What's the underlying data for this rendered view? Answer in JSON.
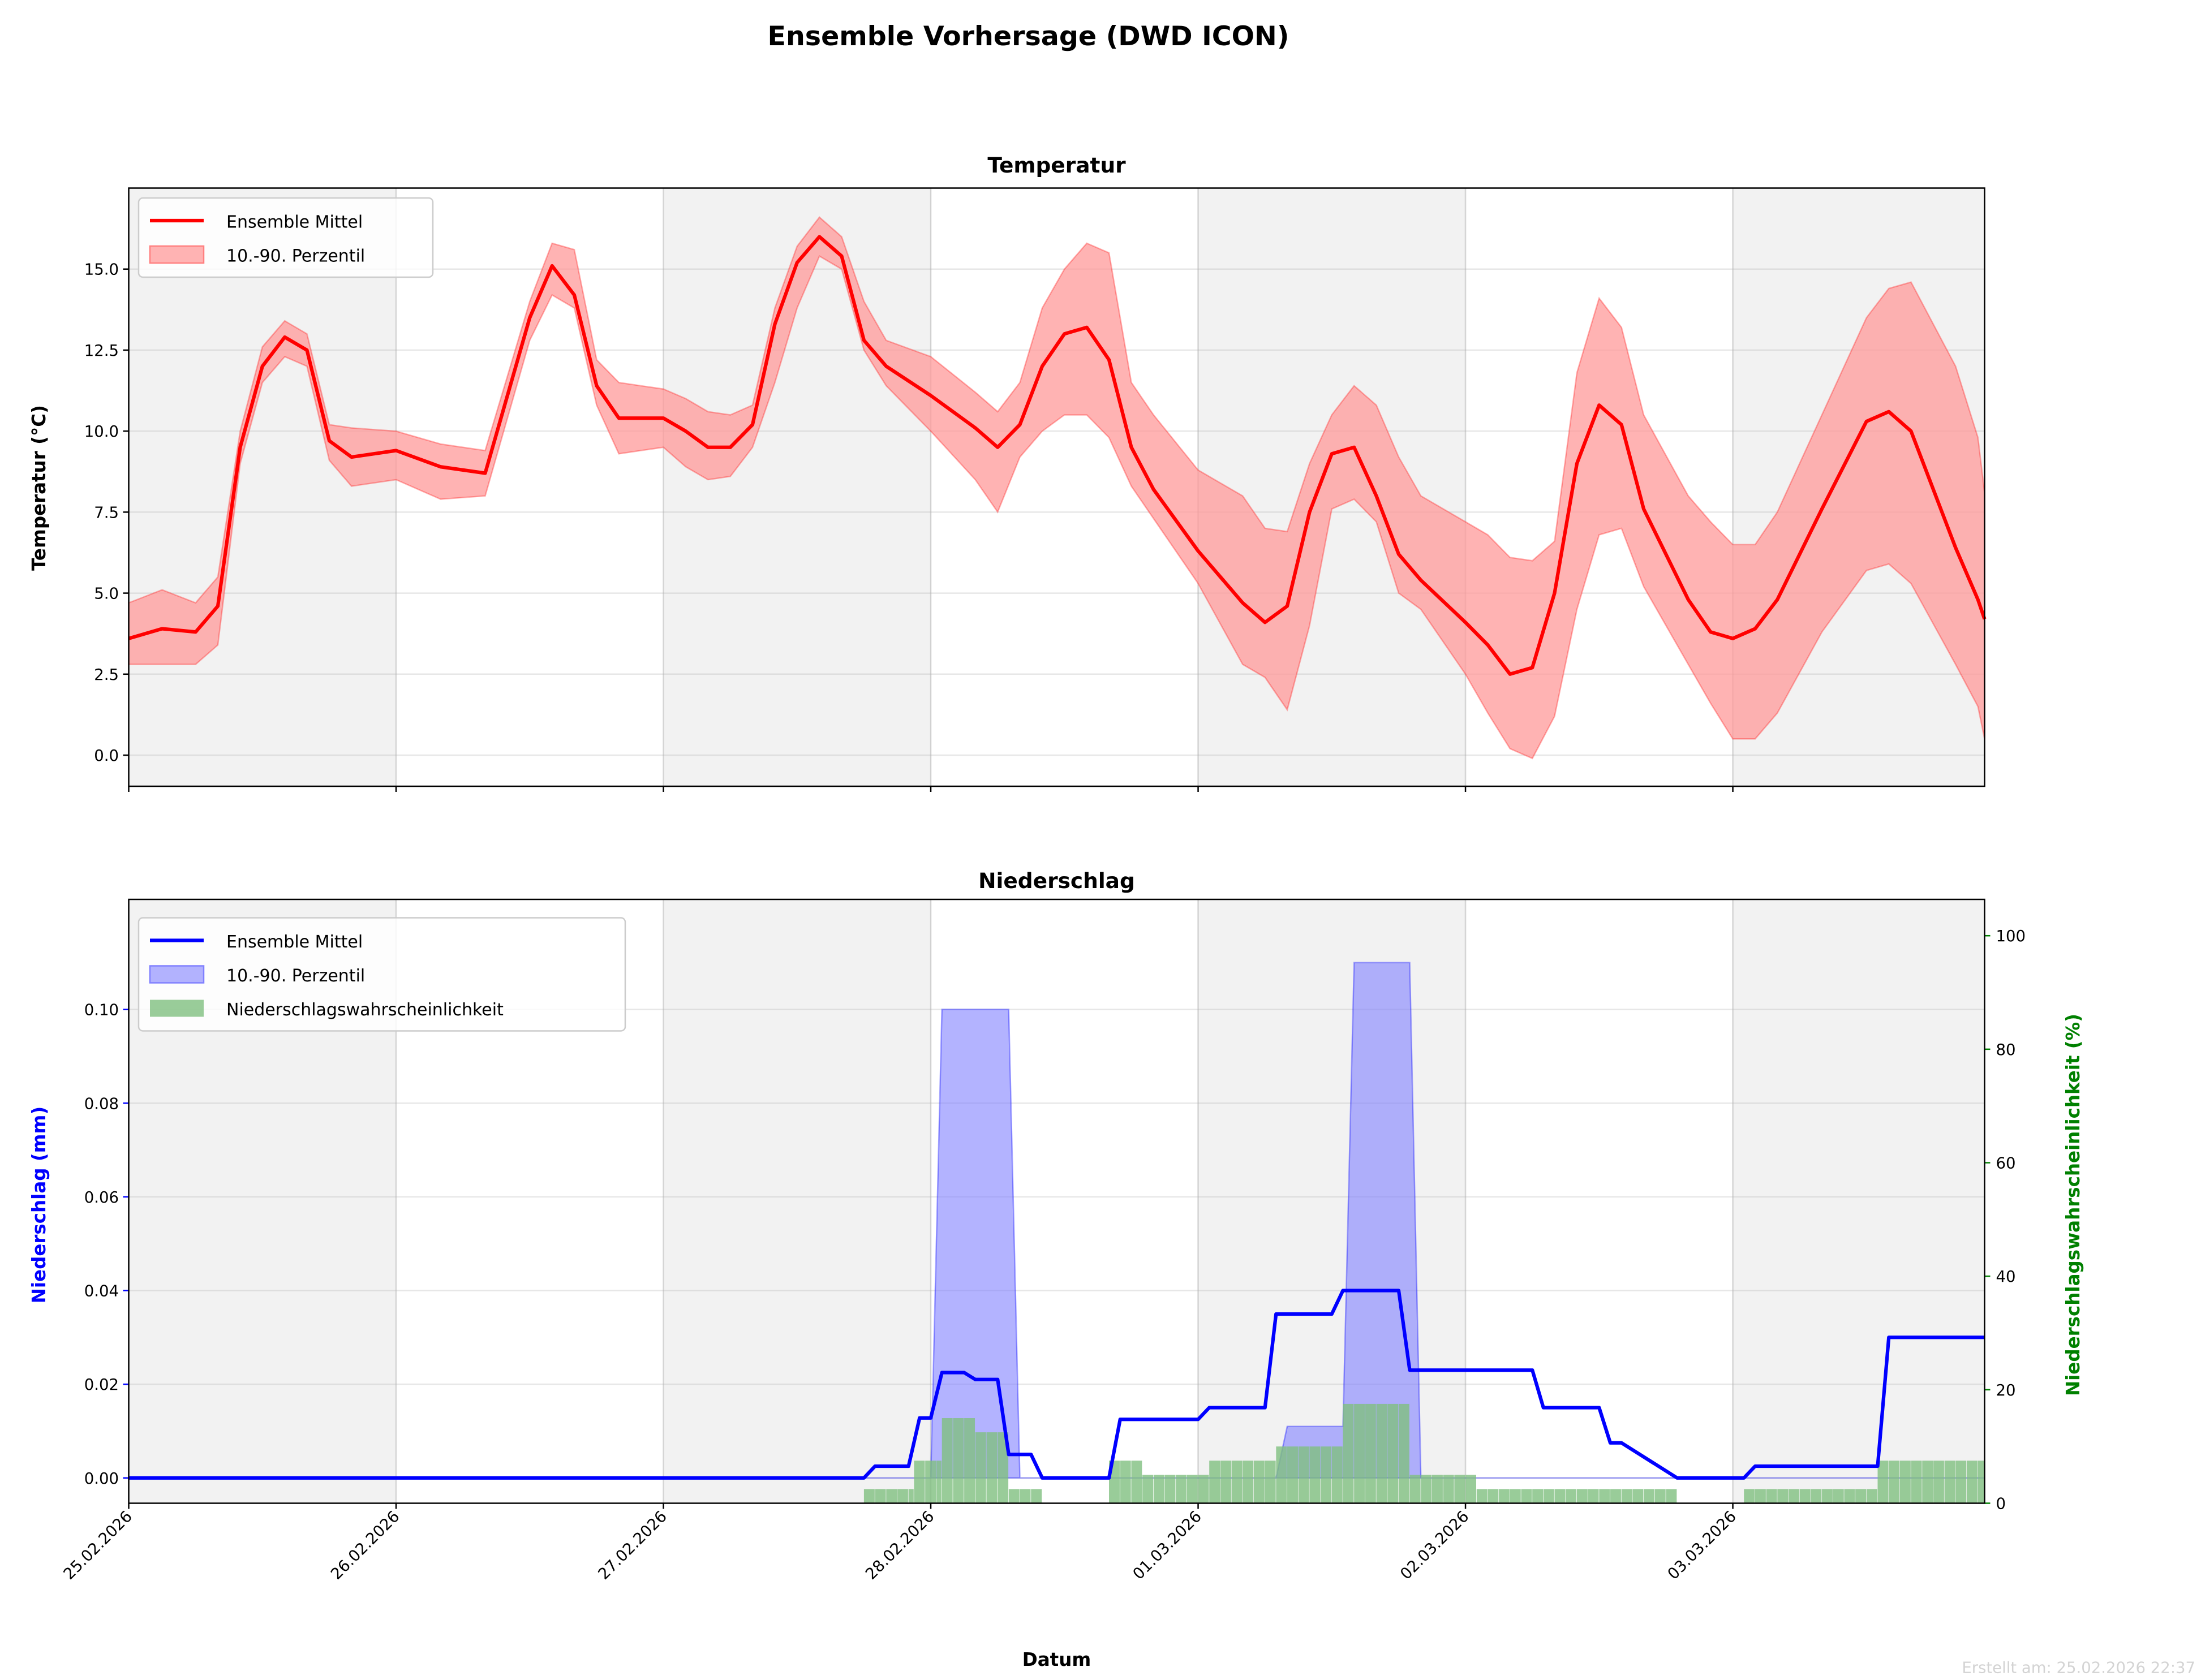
{
  "figure_title": "Ensemble Vorhersage (DWD ICON)",
  "footer": "Erstellt am: 25.02.2026 22:37",
  "x_axis": {
    "label": "Datum",
    "start_hour": 0,
    "end_hour": 166.6,
    "tick_labels": [
      "25.02.2026",
      "26.02.2026",
      "27.02.2026",
      "28.02.2026",
      "01.03.2026",
      "02.03.2026",
      "03.03.2026"
    ],
    "shaded_days": [
      0,
      2,
      4,
      6
    ]
  },
  "chart_data": [
    {
      "type": "line",
      "title": "Temperatur",
      "xlabel": "",
      "ylabel": "Temperatur (°C)",
      "ylim": [
        -0.96,
        17.5
      ],
      "yticks": [
        0.0,
        2.5,
        5.0,
        7.5,
        10.0,
        12.5,
        15.0
      ],
      "ytick_labels": [
        "0.0",
        "2.5",
        "5.0",
        "7.5",
        "10.0",
        "12.5",
        "15.0"
      ],
      "grid": true,
      "legend_position": "top-left",
      "legend": [
        "Ensemble Mittel",
        "10.-90. Perzentil"
      ],
      "colors": {
        "mean": "#ff0000",
        "band": "#ff9999"
      },
      "hours": [
        0,
        3,
        6,
        8,
        10,
        12,
        14,
        16,
        18,
        20,
        24,
        28,
        32,
        36,
        38,
        40,
        42,
        44,
        48,
        50,
        52,
        54,
        56,
        58,
        60,
        62,
        64,
        66,
        68,
        72,
        76,
        78,
        80,
        82,
        84,
        86,
        88,
        90,
        92,
        96,
        100,
        102,
        104,
        106,
        108,
        110,
        112,
        114,
        116,
        120,
        122,
        124,
        126,
        128,
        130,
        132,
        134,
        136,
        140,
        142,
        144,
        146,
        148,
        152,
        156,
        158,
        160,
        164,
        166,
        166.6
      ],
      "mean": [
        3.6,
        3.9,
        3.8,
        4.6,
        9.5,
        12.0,
        12.9,
        12.5,
        9.7,
        9.2,
        9.4,
        8.9,
        8.7,
        13.5,
        15.1,
        14.2,
        11.4,
        10.4,
        10.4,
        10.0,
        9.5,
        9.5,
        10.2,
        13.3,
        15.2,
        16.0,
        15.4,
        12.8,
        12.0,
        11.1,
        10.1,
        9.5,
        10.2,
        12.0,
        13.0,
        13.2,
        12.2,
        9.5,
        8.2,
        6.3,
        4.7,
        4.1,
        4.6,
        7.5,
        9.3,
        9.5,
        8.0,
        6.2,
        5.4,
        4.1,
        3.4,
        2.5,
        2.7,
        5.0,
        9.0,
        10.8,
        10.2,
        7.6,
        4.8,
        3.8,
        3.6,
        3.9,
        4.8,
        7.6,
        10.3,
        10.6,
        10.0,
        6.4,
        4.8,
        4.2
      ],
      "p10": [
        2.8,
        2.8,
        2.8,
        3.4,
        9.0,
        11.5,
        12.3,
        12.0,
        9.1,
        8.3,
        8.5,
        7.9,
        8.0,
        12.8,
        14.2,
        13.8,
        10.8,
        9.3,
        9.5,
        8.9,
        8.5,
        8.6,
        9.5,
        11.5,
        13.8,
        15.4,
        15.0,
        12.5,
        11.4,
        10.0,
        8.5,
        7.5,
        9.2,
        10.0,
        10.5,
        10.5,
        9.8,
        8.3,
        7.3,
        5.3,
        2.8,
        2.4,
        1.4,
        4.0,
        7.6,
        7.9,
        7.2,
        5.0,
        4.5,
        2.5,
        1.3,
        0.2,
        -0.1,
        1.2,
        4.5,
        6.8,
        7.0,
        5.2,
        2.8,
        1.6,
        0.5,
        0.5,
        1.3,
        3.8,
        5.7,
        5.9,
        5.3,
        2.8,
        1.5,
        0.5
      ],
      "p90": [
        4.7,
        5.1,
        4.7,
        5.5,
        10.0,
        12.6,
        13.4,
        13.0,
        10.2,
        10.1,
        10.0,
        9.6,
        9.4,
        14.0,
        15.8,
        15.6,
        12.2,
        11.5,
        11.3,
        11.0,
        10.6,
        10.5,
        10.8,
        13.8,
        15.7,
        16.6,
        16.0,
        14.0,
        12.8,
        12.3,
        11.2,
        10.6,
        11.5,
        13.8,
        15.0,
        15.8,
        15.5,
        11.5,
        10.5,
        8.8,
        8.0,
        7.0,
        6.9,
        9.0,
        10.5,
        11.4,
        10.8,
        9.2,
        8.0,
        7.2,
        6.8,
        6.1,
        6.0,
        6.6,
        11.8,
        14.1,
        13.2,
        10.5,
        8.0,
        7.2,
        6.5,
        6.5,
        7.5,
        10.5,
        13.5,
        14.4,
        14.6,
        12.0,
        9.8,
        8.1
      ]
    },
    {
      "type": "line",
      "title": "Niederschlag",
      "xlabel": "Datum",
      "ylabel": "Niederschlag (mm)",
      "ylabel_right": "Niederschlagswahrscheinlichkeit (%)",
      "ylim": [
        -0.0054,
        0.1235
      ],
      "ylim_right": [
        0,
        106.4
      ],
      "yticks": [
        0.0,
        0.02,
        0.04,
        0.06,
        0.08,
        0.1
      ],
      "ytick_labels": [
        "0.00",
        "0.02",
        "0.04",
        "0.06",
        "0.08",
        "0.10"
      ],
      "yticks_right": [
        0,
        20,
        40,
        60,
        80,
        100
      ],
      "ytick_labels_right": [
        "0",
        "20",
        "40",
        "60",
        "80",
        "100"
      ],
      "grid": true,
      "legend_position": "top-left",
      "legend": [
        "Ensemble Mittel",
        "10.-90. Perzentil",
        "Niederschlagswahrscheinlichkeit"
      ],
      "colors": {
        "mean": "#0000ff",
        "band": "#8080ff",
        "prob": "#7fbf7f",
        "left_axis": "#0000ff",
        "right_axis": "#008000"
      },
      "mean_points": [
        [
          0,
          0
        ],
        [
          66,
          0
        ],
        [
          67,
          0.0025
        ],
        [
          70,
          0.0025
        ],
        [
          71,
          0.0128
        ],
        [
          72,
          0.0128
        ],
        [
          73,
          0.0225
        ],
        [
          75,
          0.0225
        ],
        [
          76,
          0.021
        ],
        [
          78,
          0.021
        ],
        [
          79,
          0.005
        ],
        [
          81,
          0.005
        ],
        [
          82,
          0
        ],
        [
          88,
          0
        ],
        [
          89,
          0.0125
        ],
        [
          96,
          0.0125
        ],
        [
          97,
          0.015
        ],
        [
          102,
          0.015
        ],
        [
          103,
          0.035
        ],
        [
          108,
          0.035
        ],
        [
          109,
          0.04
        ],
        [
          114,
          0.04
        ],
        [
          115,
          0.023
        ],
        [
          126,
          0.023
        ],
        [
          127,
          0.015
        ],
        [
          132,
          0.015
        ],
        [
          133,
          0.0075
        ],
        [
          134,
          0.0075
        ],
        [
          139,
          0
        ],
        [
          145,
          0
        ],
        [
          146,
          0.0025
        ],
        [
          157,
          0.0025
        ],
        [
          158,
          0.03
        ],
        [
          166.6,
          0.03
        ]
      ],
      "p90_points": [
        [
          0,
          0
        ],
        [
          72,
          0
        ],
        [
          73,
          0.1
        ],
        [
          79,
          0.1
        ],
        [
          80,
          0
        ],
        [
          103,
          0
        ],
        [
          104,
          0.011
        ],
        [
          109,
          0.011
        ],
        [
          110,
          0.11
        ],
        [
          115,
          0.11
        ],
        [
          116,
          0
        ],
        [
          166.6,
          0
        ]
      ],
      "probability_segments": [
        [
          66,
          70.5,
          2.5
        ],
        [
          70.5,
          73,
          7.5
        ],
        [
          73,
          76,
          15
        ],
        [
          76,
          79,
          12.5
        ],
        [
          79,
          82,
          2.5
        ],
        [
          88,
          91,
          7.5
        ],
        [
          91,
          97,
          5
        ],
        [
          97,
          103,
          7.5
        ],
        [
          103,
          109,
          10
        ],
        [
          109,
          115,
          17.5
        ],
        [
          115,
          121,
          5
        ],
        [
          121,
          139,
          2.5
        ],
        [
          145,
          157,
          2.5
        ],
        [
          157,
          166.6,
          7.5
        ]
      ]
    }
  ]
}
